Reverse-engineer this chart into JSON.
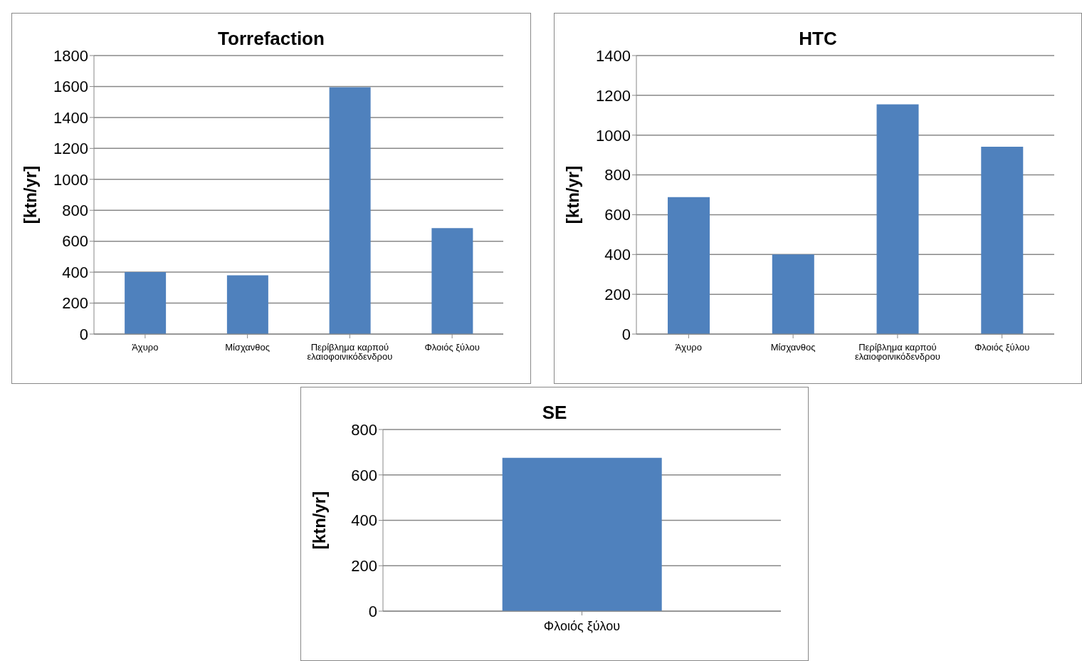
{
  "chart_data": [
    {
      "type": "bar",
      "title": "Torrefaction",
      "ylabel": "[ktn/yr]",
      "categories": [
        "Άχυρο",
        "Μίσχανθος",
        "Περίβλημα καρπού ελαιοφοινικόδενδρου",
        "Φλοιός ξύλου"
      ],
      "values": [
        400,
        380,
        1595,
        685
      ],
      "color": "#4f81bd",
      "ylim": [
        0,
        1800
      ],
      "yticks": [
        0,
        200,
        400,
        600,
        800,
        1000,
        1200,
        1400,
        1600,
        1800
      ],
      "grid": "y"
    },
    {
      "type": "bar",
      "title": "HTC",
      "ylabel": "[ktn/yr]",
      "categories": [
        "Άχυρο",
        "Μίσχανθος",
        "Περίβλημα καρπού ελαιοφοινικόδενδρου",
        "Φλοιός ξύλου"
      ],
      "values": [
        688,
        400,
        1155,
        942
      ],
      "color": "#4f81bd",
      "ylim": [
        0,
        1400
      ],
      "yticks": [
        0,
        200,
        400,
        600,
        800,
        1000,
        1200,
        1400
      ],
      "grid": "y"
    },
    {
      "type": "bar",
      "title": "SE",
      "ylabel": "[ktn/yr]",
      "categories": [
        "Φλοιός ξύλου"
      ],
      "values": [
        675
      ],
      "color": "#4f81bd",
      "ylim": [
        0,
        800
      ],
      "yticks": [
        0,
        200,
        400,
        600,
        800
      ],
      "grid": "y"
    }
  ]
}
